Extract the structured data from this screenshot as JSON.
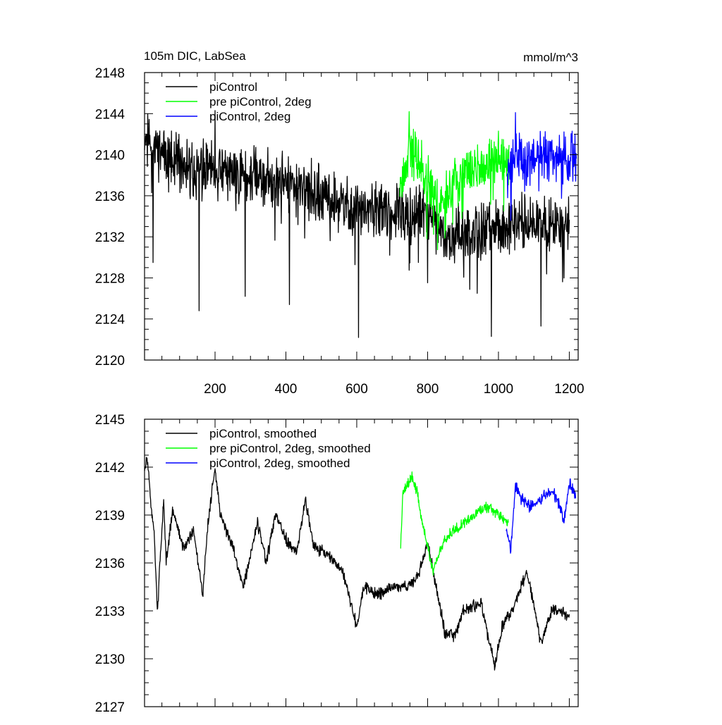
{
  "colors": {
    "axis": "#000000",
    "background": "#ffffff"
  },
  "chart_data": [
    {
      "type": "line",
      "title_left": "105m DIC, LabSea",
      "title_right": "mmol/m^3",
      "xlabel": "",
      "ylabel": "",
      "xlim": [
        1,
        1225
      ],
      "ylim": [
        2120,
        2148
      ],
      "xticks": [
        200,
        400,
        600,
        800,
        1000,
        1200
      ],
      "xtick_labels": [
        "200",
        "400",
        "600",
        "800",
        "1000",
        "1200"
      ],
      "yticks": [
        2120,
        2124,
        2128,
        2132,
        2136,
        2140,
        2144,
        2148
      ],
      "ytick_labels": [
        "2120",
        "2124",
        "2128",
        "2132",
        "2136",
        "2140",
        "2144",
        "2148"
      ],
      "legend_position": "top-left",
      "series": [
        {
          "name": "piControl",
          "color": "#000000",
          "x_range": [
            1,
            1200
          ],
          "anchors": [
            [
              1,
              2142
            ],
            [
              60,
              2139.5
            ],
            [
              150,
              2138.5
            ],
            [
              300,
              2138
            ],
            [
              400,
              2137.5
            ],
            [
              480,
              2136.5
            ],
            [
              560,
              2135
            ],
            [
              700,
              2134.5
            ],
            [
              800,
              2134
            ],
            [
              850,
              2132
            ],
            [
              950,
              2132.5
            ],
            [
              1050,
              2133.5
            ],
            [
              1200,
              2133
            ]
          ],
          "noise": 3.2,
          "seed": 11,
          "spikes": [
            [
              155,
              2124.8
            ],
            [
              410,
              2125.4
            ],
            [
              605,
              2122.2
            ],
            [
              980,
              2122.3
            ],
            [
              1120,
              2123.3
            ],
            [
              285,
              2126.2
            ],
            [
              25,
              2129.5
            ],
            [
              940,
              2126.5
            ],
            [
              200,
              2144.3
            ]
          ]
        },
        {
          "name": "pre piControl, 2deg",
          "color": "#00ff00",
          "x_range": [
            722,
            1030
          ],
          "anchors": [
            [
              722,
              2137
            ],
            [
              750,
              2141
            ],
            [
              780,
              2139
            ],
            [
              810,
              2137
            ],
            [
              830,
              2135
            ],
            [
              870,
              2137
            ],
            [
              920,
              2138.5
            ],
            [
              980,
              2139.5
            ],
            [
              1030,
              2139
            ]
          ],
          "noise": 2.8,
          "seed": 23,
          "spikes": [
            [
              748,
              2144.2
            ],
            [
              1000,
              2142.3
            ]
          ]
        },
        {
          "name": "piControl, 2deg",
          "color": "#0000ff",
          "x_range": [
            1025,
            1220
          ],
          "anchors": [
            [
              1025,
              2138.5
            ],
            [
              1050,
              2140
            ],
            [
              1080,
              2139
            ],
            [
              1120,
              2140
            ],
            [
              1160,
              2139.5
            ],
            [
              1200,
              2140
            ],
            [
              1220,
              2139.8
            ]
          ],
          "noise": 3.0,
          "seed": 37,
          "spikes": [
            [
              1048,
              2144.1
            ],
            [
              1035,
              2133.6
            ]
          ]
        }
      ]
    },
    {
      "type": "line",
      "title_left": "",
      "title_right": "",
      "xlabel": "",
      "ylabel": "",
      "xlim": [
        1,
        1225
      ],
      "ylim": [
        2127,
        2145
      ],
      "xticks": [
        200,
        400,
        600,
        800,
        1000,
        1200
      ],
      "xtick_labels": [],
      "yticks": [
        2127,
        2130,
        2133,
        2136,
        2139,
        2142,
        2145
      ],
      "ytick_labels": [
        "2127",
        "2130",
        "2133",
        "2136",
        "2139",
        "2142",
        "2145"
      ],
      "legend_position": "top-left",
      "series": [
        {
          "name": "piControl, smoothed",
          "color": "#000000",
          "x_range": [
            1,
            1200
          ],
          "anchors": [
            [
              1,
              2141.7
            ],
            [
              8,
              2142.6
            ],
            [
              20,
              2139.5
            ],
            [
              28,
              2138
            ],
            [
              38,
              2132.8
            ],
            [
              45,
              2136.5
            ],
            [
              55,
              2139.8
            ],
            [
              62,
              2136
            ],
            [
              80,
              2139.3
            ],
            [
              110,
              2137
            ],
            [
              140,
              2138
            ],
            [
              165,
              2134
            ],
            [
              180,
              2138.5
            ],
            [
              200,
              2142
            ],
            [
              215,
              2139
            ],
            [
              250,
              2137
            ],
            [
              280,
              2134.5
            ],
            [
              320,
              2138.5
            ],
            [
              345,
              2136
            ],
            [
              370,
              2139
            ],
            [
              400,
              2137.5
            ],
            [
              430,
              2136.5
            ],
            [
              455,
              2140
            ],
            [
              480,
              2137
            ],
            [
              520,
              2136.5
            ],
            [
              560,
              2135.5
            ],
            [
              600,
              2132
            ],
            [
              620,
              2134.5
            ],
            [
              660,
              2134
            ],
            [
              700,
              2134.5
            ],
            [
              740,
              2134.5
            ],
            [
              770,
              2135
            ],
            [
              800,
              2137.3
            ],
            [
              820,
              2135
            ],
            [
              850,
              2131.5
            ],
            [
              880,
              2131.5
            ],
            [
              900,
              2133
            ],
            [
              950,
              2133.5
            ],
            [
              990,
              2129.5
            ],
            [
              1010,
              2132
            ],
            [
              1050,
              2133.5
            ],
            [
              1080,
              2135.5
            ],
            [
              1120,
              2131
            ],
            [
              1150,
              2133
            ],
            [
              1180,
              2133
            ],
            [
              1200,
              2132.6
            ]
          ],
          "noise": 0.45,
          "seed": 51,
          "spikes": []
        },
        {
          "name": "pre piControl, 2deg, smoothed",
          "color": "#00ff00",
          "x_range": [
            724,
            1028
          ],
          "anchors": [
            [
              724,
              2136.8
            ],
            [
              730,
              2140.4
            ],
            [
              745,
              2141
            ],
            [
              755,
              2141.5
            ],
            [
              770,
              2140.5
            ],
            [
              785,
              2138.5
            ],
            [
              800,
              2137
            ],
            [
              815,
              2135.5
            ],
            [
              830,
              2136.5
            ],
            [
              850,
              2137.5
            ],
            [
              870,
              2138
            ],
            [
              900,
              2138.5
            ],
            [
              930,
              2139
            ],
            [
              960,
              2139.5
            ],
            [
              980,
              2139.5
            ],
            [
              1000,
              2139
            ],
            [
              1028,
              2138.5
            ]
          ],
          "noise": 0.4,
          "seed": 63,
          "spikes": []
        },
        {
          "name": "piControl, 2deg, smoothed",
          "color": "#0000ff",
          "x_range": [
            1022,
            1218
          ],
          "anchors": [
            [
              1022,
              2138.2
            ],
            [
              1035,
              2136.8
            ],
            [
              1048,
              2140.8
            ],
            [
              1065,
              2140
            ],
            [
              1090,
              2139.5
            ],
            [
              1120,
              2140
            ],
            [
              1150,
              2140.5
            ],
            [
              1170,
              2139.8
            ],
            [
              1185,
              2138.5
            ],
            [
              1200,
              2141
            ],
            [
              1218,
              2140.2
            ]
          ],
          "noise": 0.45,
          "seed": 77,
          "spikes": []
        }
      ]
    }
  ]
}
